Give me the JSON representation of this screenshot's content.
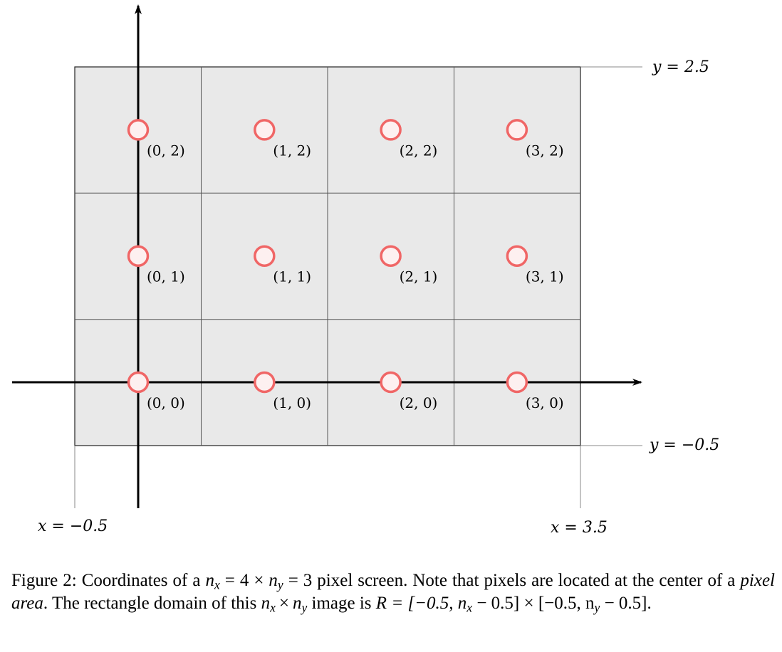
{
  "diagram": {
    "x_boundary_left_label": "x = −0.5",
    "x_boundary_right_label": "x = 3.5",
    "y_boundary_top_label": "y = 2.5",
    "y_boundary_bottom_label": "y = −0.5",
    "grid": {
      "nx": 4,
      "ny": 3
    },
    "pixel_labels": [
      [
        "(0, 0)",
        "(1, 0)",
        "(2, 0)",
        "(3, 0)"
      ],
      [
        "(0, 1)",
        "(1, 1)",
        "(2, 1)",
        "(3, 1)"
      ],
      [
        "(0, 2)",
        "(1, 2)",
        "(2, 2)",
        "(3, 2)"
      ]
    ],
    "colors": {
      "cell_fill": "#e9e9e9",
      "grid_line": "#555555",
      "pixel_stroke": "#f06666",
      "pixel_fill": "#fdf0f0",
      "axis": "#000000"
    }
  },
  "caption": {
    "figure_label": "Figure 2:",
    "text_1": "Coordinates of a",
    "nx_expr": "n",
    "nx_sub": "x",
    "eq_4_times": " = 4 × ",
    "ny_expr": "n",
    "ny_sub": "y",
    "eq_3": " = 3",
    "text_2": "pixel screen. Note that pixels are located at the center of a",
    "pixel_area": "pixel area",
    "text_3": ". The rectangle domain of this",
    "text_4": "image is",
    "domain_expr": "R = [−0.5, n",
    "domain_expr_2": " − 0.5] × [−0.5, n",
    "domain_expr_3": " − 0.5]."
  }
}
